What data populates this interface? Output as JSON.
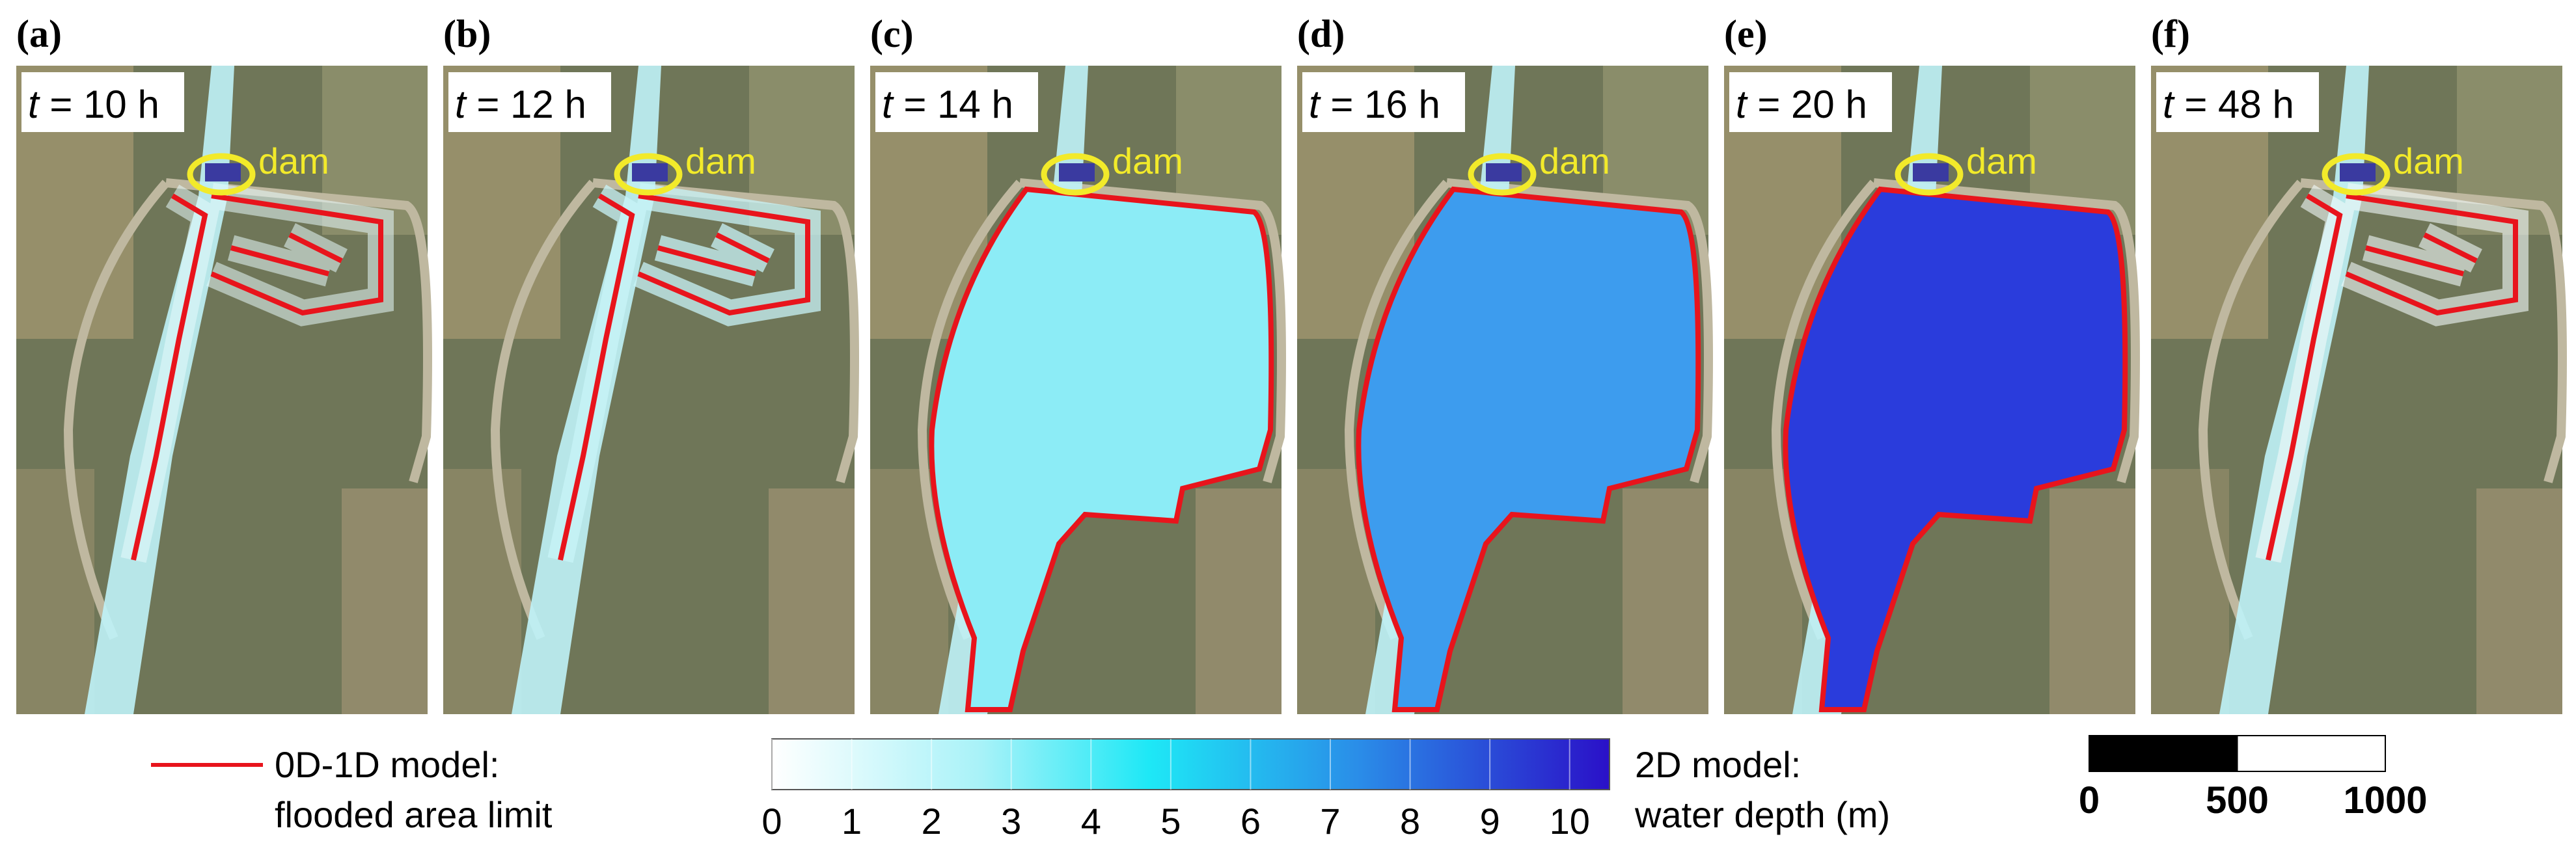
{
  "panels": [
    {
      "label": "(a)",
      "time_var": "t",
      "time_rest": " = 10 h",
      "dam": "dam",
      "flood_color": "#e6fafc",
      "flood_opacity": 0.55
    },
    {
      "label": "(b)",
      "time_var": "t",
      "time_rest": " = 12 h",
      "dam": "dam",
      "flood_color": "#c8f4f8",
      "flood_opacity": 0.75
    },
    {
      "label": "(c)",
      "time_var": "t",
      "time_rest": " = 14 h",
      "dam": "dam",
      "flood_color": "#8cecf6",
      "flood_opacity": 1
    },
    {
      "label": "(d)",
      "time_var": "t",
      "time_rest": " = 16 h",
      "dam": "dam",
      "flood_color": "#3d9cee",
      "flood_opacity": 1
    },
    {
      "label": "(e)",
      "time_var": "t",
      "time_rest": " = 20 h",
      "dam": "dam",
      "flood_color": "#2a3cdc",
      "flood_opacity": 1
    },
    {
      "label": "(f)",
      "time_var": "t",
      "time_rest": " = 48 h",
      "dam": "dam",
      "flood_color": "#f2fafa",
      "flood_opacity": 0.6
    }
  ],
  "legend": {
    "line_color": "#e8141c",
    "line_label": [
      "0D-1D model:",
      "flooded area limit"
    ]
  },
  "colorbar": {
    "ticks": [
      0,
      1,
      2,
      3,
      4,
      5,
      6,
      7,
      8,
      9,
      10
    ],
    "lim": [
      0,
      10.5
    ],
    "label": [
      "2D model:",
      "water depth (m)"
    ]
  },
  "scalebar": {
    "ticks": [
      0,
      500,
      1000
    ]
  }
}
